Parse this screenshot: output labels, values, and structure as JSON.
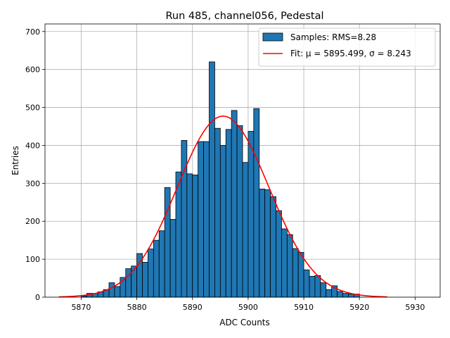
{
  "chart_data": {
    "type": "bar",
    "title": "Run 485, channel056, Pedestal",
    "xlabel": "ADC Counts",
    "ylabel": "Entries",
    "xlim": [
      5863.5,
      5934.5
    ],
    "ylim": [
      0,
      720
    ],
    "xticks": [
      5870,
      5880,
      5890,
      5900,
      5910,
      5920,
      5930
    ],
    "yticks": [
      0,
      100,
      200,
      300,
      400,
      500,
      600,
      700
    ],
    "grid": true,
    "legend_position": "top-right",
    "histogram": {
      "name": "Samples: RMS=8.28",
      "color": "#1f77b4",
      "edgecolor": "#000000",
      "bin_start": 5866,
      "bin_width": 1,
      "counts": [
        0,
        0,
        0,
        0,
        3,
        10,
        10,
        14,
        20,
        38,
        28,
        52,
        75,
        82,
        115,
        92,
        127,
        150,
        175,
        289,
        205,
        330,
        413,
        325,
        322,
        410,
        410,
        620,
        445,
        400,
        442,
        492,
        452,
        355,
        437,
        497,
        285,
        283,
        265,
        228,
        180,
        165,
        128,
        118,
        72,
        55,
        57,
        38,
        20,
        30,
        15,
        10,
        8,
        8
      ]
    },
    "fit": {
      "name": "Fit: μ = 5895.499, σ = 8.243",
      "color": "#ff0000",
      "mu": 5895.499,
      "sigma": 8.243,
      "peak": 477,
      "x_range": [
        5866,
        5925
      ]
    }
  }
}
